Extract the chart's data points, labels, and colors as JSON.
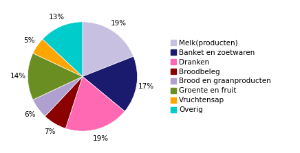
{
  "labels": [
    "Melk(producten)",
    "Banket en zoetwaren",
    "Dranken",
    "Broodbeleg",
    "Brood en graanproducten",
    "Groente en fruit",
    "Vruchtensap",
    "Overig"
  ],
  "values": [
    19,
    17,
    19,
    7,
    6,
    14,
    5,
    13
  ],
  "colors": [
    "#c8c0e0",
    "#1a1a6e",
    "#ff69b4",
    "#8b0000",
    "#b0a0d0",
    "#6b8e23",
    "#ffa500",
    "#00cccc"
  ],
  "background_color": "#ffffff",
  "label_fontsize": 7.5,
  "legend_fontsize": 7.5
}
